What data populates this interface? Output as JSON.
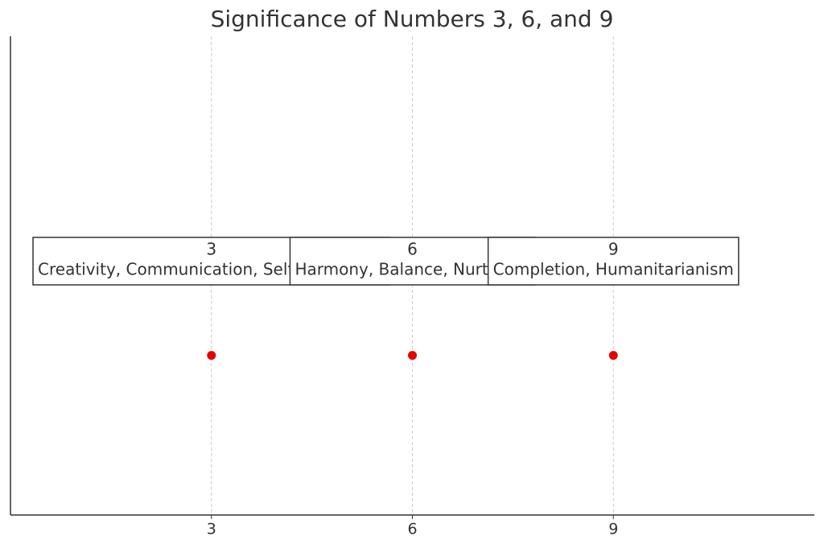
{
  "chart_data": {
    "type": "scatter",
    "title": "Significance of Numbers 3, 6, and 9",
    "x": [
      3,
      6,
      9
    ],
    "y": [
      1,
      1,
      1
    ],
    "color": "#e60000",
    "xlim": [
      0,
      12
    ],
    "ylim": [
      0,
      3
    ],
    "xticks": [
      3,
      6,
      9
    ],
    "grid": true,
    "annotations": [
      {
        "title": "3",
        "text": "Creativity, Communication, Self-expression"
      },
      {
        "title": "6",
        "text": "Harmony, Balance, Nurturing"
      },
      {
        "title": "9",
        "text": "Completion, Humanitarianism"
      }
    ]
  }
}
